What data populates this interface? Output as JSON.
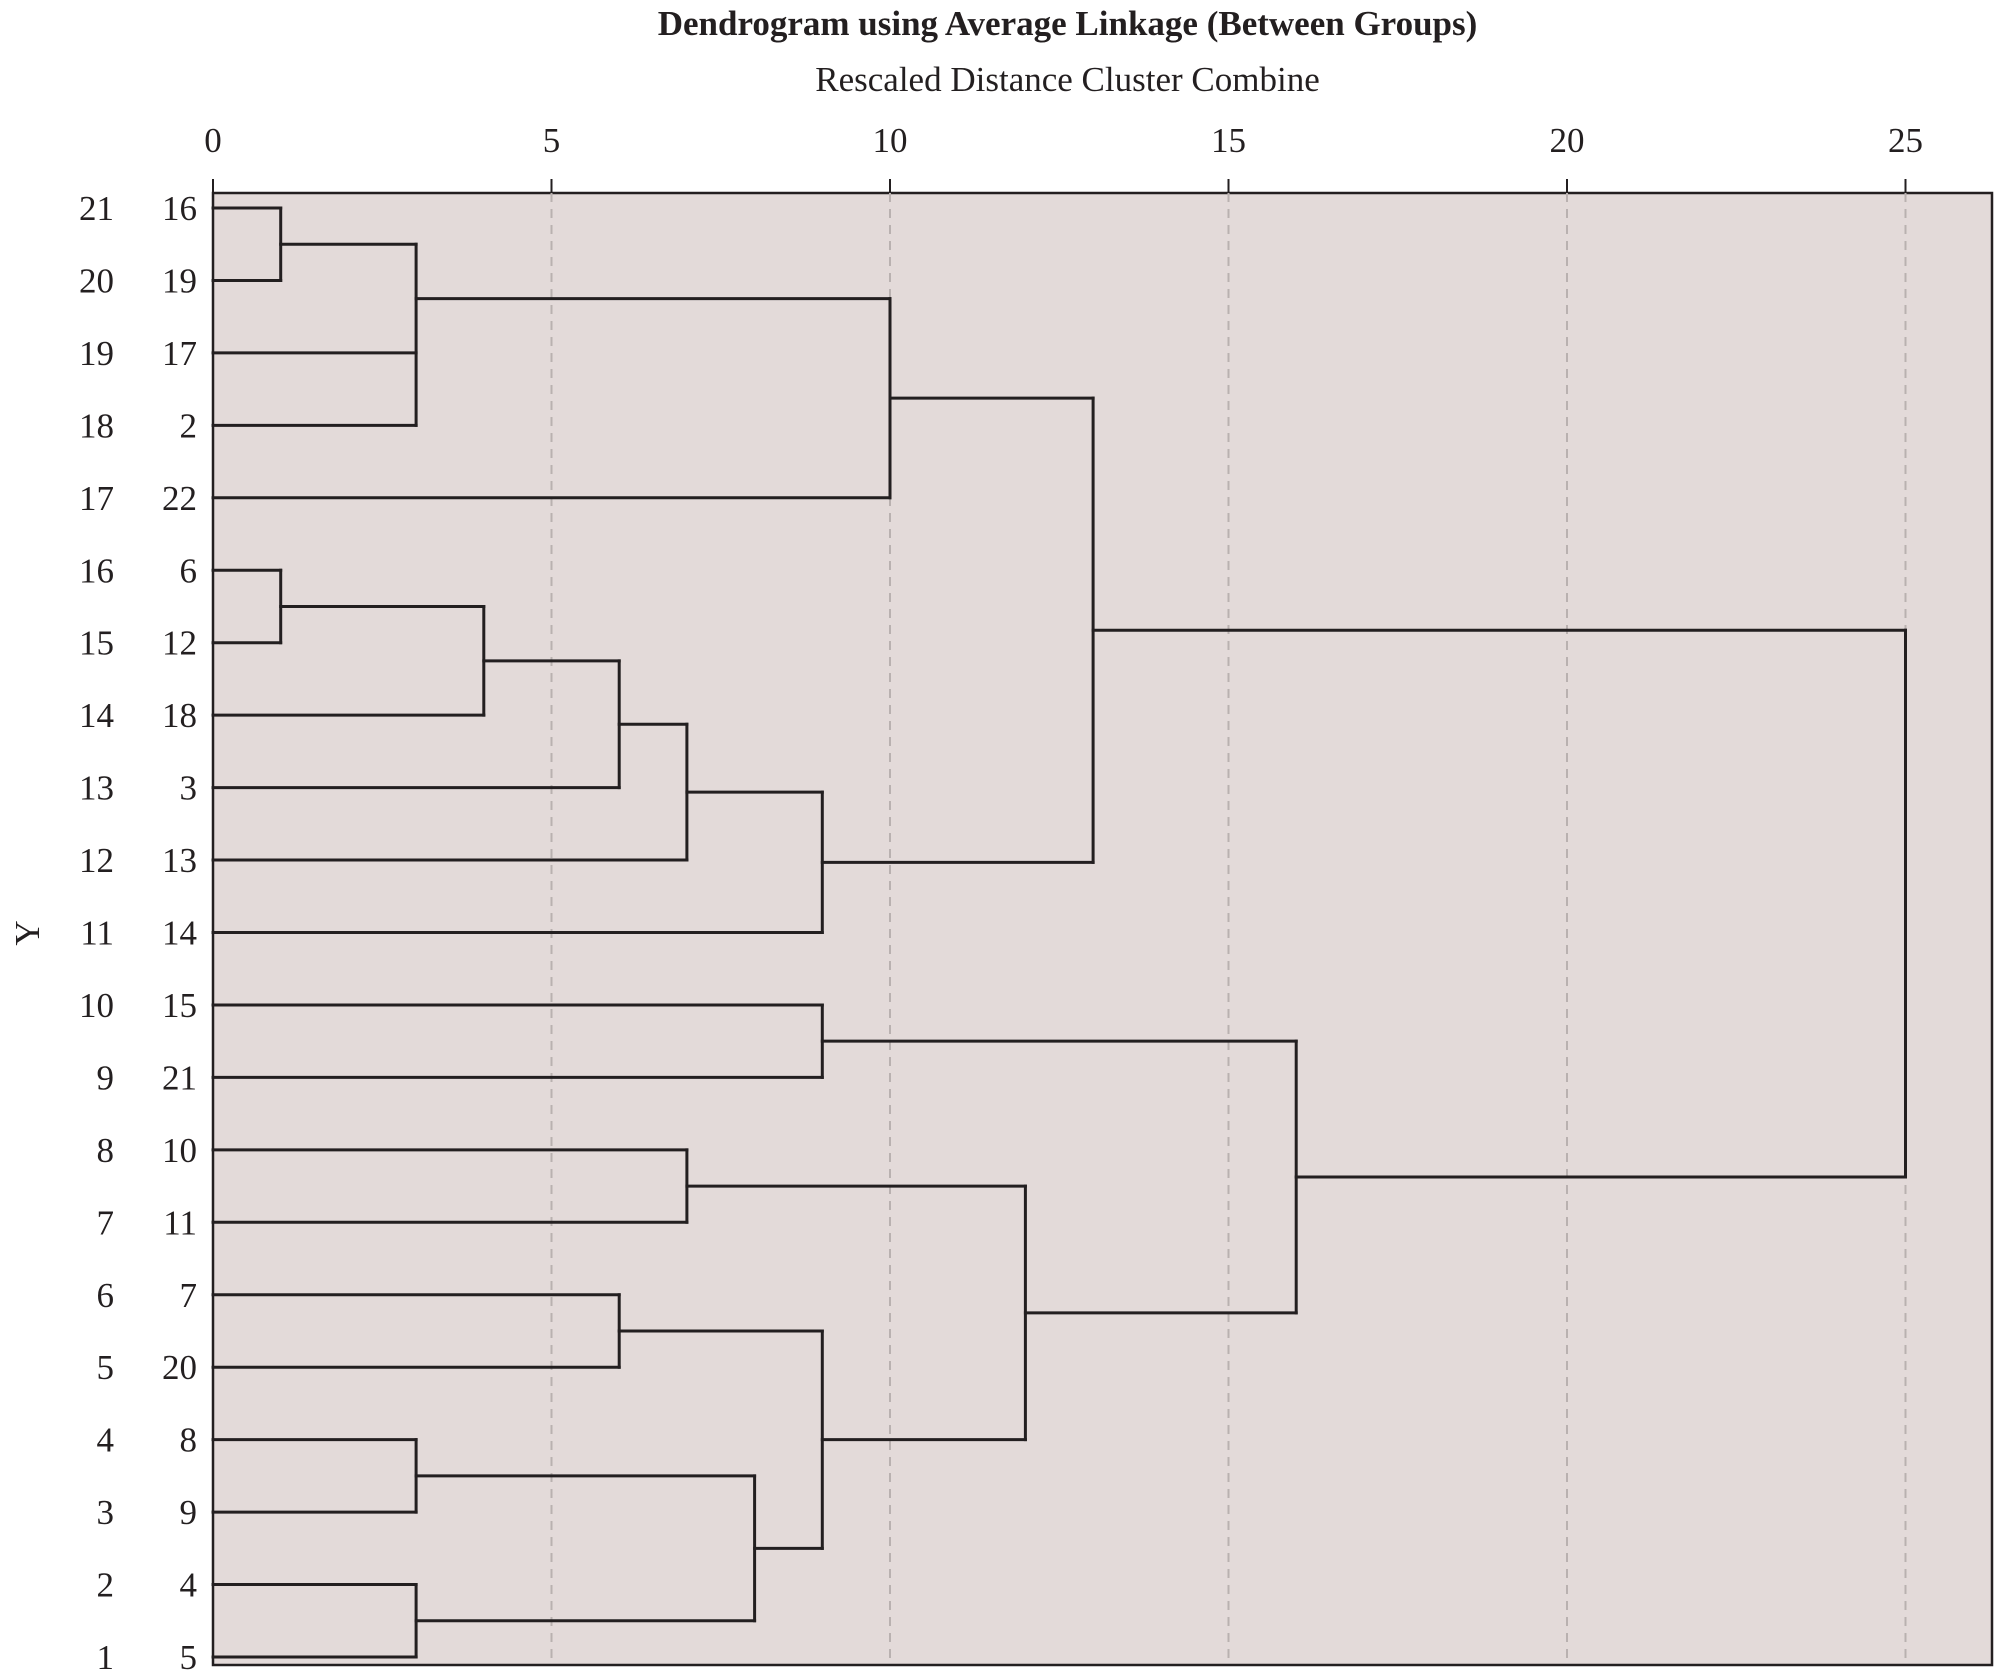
{
  "chart_data": {
    "type": "dendrogram",
    "title": "Dendrogram using Average Linkage (Between Groups)",
    "subtitle": "Rescaled Distance Cluster Combine",
    "ylabel": "Y",
    "xlim": [
      0,
      26.3
    ],
    "x_ticks": [
      0,
      5,
      10,
      15,
      20,
      25
    ],
    "grid": true,
    "colors": {
      "plot_bg": "#e3dad9",
      "line": "#231f20",
      "grid": "#b9b1b0"
    },
    "leaves": [
      {
        "row": "21",
        "case": "16"
      },
      {
        "row": "20",
        "case": "19"
      },
      {
        "row": "19",
        "case": "17"
      },
      {
        "row": "18",
        "case": "2"
      },
      {
        "row": "17",
        "case": "22"
      },
      {
        "row": "16",
        "case": "6"
      },
      {
        "row": "15",
        "case": "12"
      },
      {
        "row": "14",
        "case": "18"
      },
      {
        "row": "13",
        "case": "3"
      },
      {
        "row": "12",
        "case": "13"
      },
      {
        "row": "11",
        "case": "14"
      },
      {
        "row": "10",
        "case": "15"
      },
      {
        "row": "9",
        "case": "21"
      },
      {
        "row": "8",
        "case": "10"
      },
      {
        "row": "7",
        "case": "11"
      },
      {
        "row": "6",
        "case": "7"
      },
      {
        "row": "5",
        "case": "20"
      },
      {
        "row": "4",
        "case": "8"
      },
      {
        "row": "3",
        "case": "9"
      },
      {
        "row": "2",
        "case": "4"
      },
      {
        "row": "1",
        "case": "5"
      }
    ],
    "merges": [
      {
        "left": "L0",
        "right": "L1",
        "distance": 1
      },
      {
        "left": "L5",
        "right": "L6",
        "distance": 1
      },
      {
        "left": "L17",
        "right": "L18",
        "distance": 3
      },
      {
        "left": "L19",
        "right": "L20",
        "distance": 3
      },
      {
        "left": "M0",
        "right": "L2",
        "right2": "L3",
        "distance": 3
      },
      {
        "left": "M1",
        "right": "L7",
        "distance": 4
      },
      {
        "left": "M5",
        "right": "L8",
        "distance": 6
      },
      {
        "left": "L15",
        "right": "L16",
        "distance": 6
      },
      {
        "left": "M6",
        "right": "L9",
        "distance": 7
      },
      {
        "left": "L13",
        "right": "L14",
        "distance": 7
      },
      {
        "left": "M2",
        "right": "M3",
        "distance": 8
      },
      {
        "left": "M8",
        "right": "L10",
        "distance": 9
      },
      {
        "left": "L11",
        "right": "L12",
        "distance": 9
      },
      {
        "left": "M7",
        "right": "M10",
        "distance": 9
      },
      {
        "left": "M4",
        "right": "L4",
        "distance": 10
      },
      {
        "left": "M9",
        "right": "M13",
        "distance": 12
      },
      {
        "left": "M14",
        "right": "M11",
        "distance": 13
      },
      {
        "left": "M12",
        "right": "M15",
        "distance": 16
      },
      {
        "left": "M16",
        "right": "M17",
        "distance": 25
      }
    ]
  }
}
